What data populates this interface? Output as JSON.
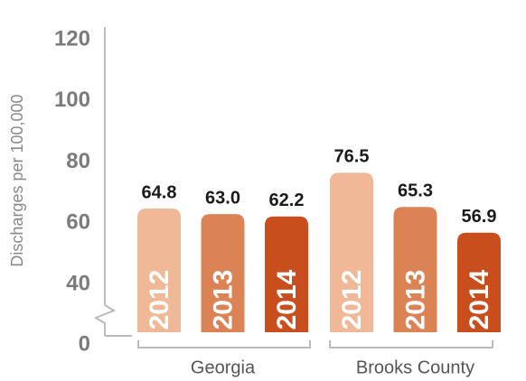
{
  "chart_data": {
    "type": "bar",
    "y_label": "Discharges per 100,000",
    "categories": [
      "Georgia",
      "Brooks County"
    ],
    "series": [
      {
        "name": "2012",
        "color": "#f0b896",
        "values": [
          64.8,
          76.5
        ],
        "value_labels": [
          "64.8",
          "76.5"
        ]
      },
      {
        "name": "2013",
        "color": "#dc8356",
        "values": [
          63,
          65.3
        ],
        "value_labels": [
          "63.0",
          "65.3"
        ]
      },
      {
        "name": "2014",
        "color": "#c94e1e",
        "values": [
          62.2,
          56.9
        ],
        "value_labels": [
          "62.2",
          "56.9"
        ]
      }
    ],
    "ylim": [
      0,
      120
    ],
    "yticks": [
      0,
      40,
      60,
      80,
      100,
      120
    ],
    "axis_break": [
      0,
      40
    ]
  }
}
